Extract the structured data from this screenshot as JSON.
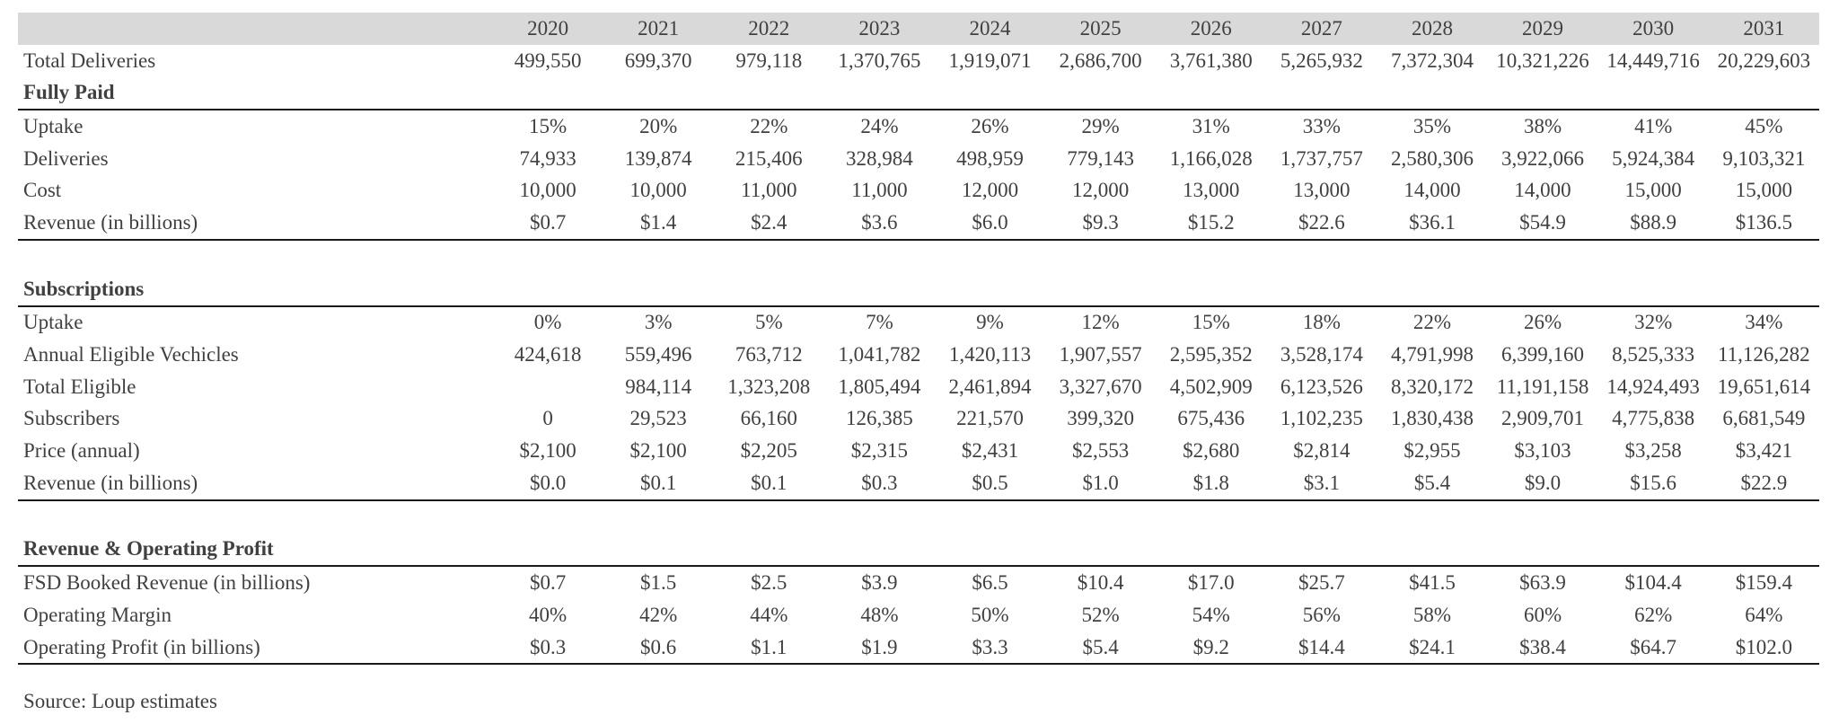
{
  "years": [
    "2020",
    "2021",
    "2022",
    "2023",
    "2024",
    "2025",
    "2026",
    "2027",
    "2028",
    "2029",
    "2030",
    "2031"
  ],
  "total_deliveries": {
    "label": "Total Deliveries",
    "values": [
      "499,550",
      "699,370",
      "979,118",
      "1,370,765",
      "1,919,071",
      "2,686,700",
      "3,761,380",
      "5,265,932",
      "7,372,304",
      "10,321,226",
      "14,449,716",
      "20,229,603"
    ]
  },
  "fully_paid": {
    "title": "Fully Paid",
    "rows": [
      {
        "label": "Uptake",
        "values": [
          "15%",
          "20%",
          "22%",
          "24%",
          "26%",
          "29%",
          "31%",
          "33%",
          "35%",
          "38%",
          "41%",
          "45%"
        ]
      },
      {
        "label": "Deliveries",
        "values": [
          "74,933",
          "139,874",
          "215,406",
          "328,984",
          "498,959",
          "779,143",
          "1,166,028",
          "1,737,757",
          "2,580,306",
          "3,922,066",
          "5,924,384",
          "9,103,321"
        ]
      },
      {
        "label": "Cost",
        "values": [
          "10,000",
          "10,000",
          "11,000",
          "11,000",
          "12,000",
          "12,000",
          "13,000",
          "13,000",
          "14,000",
          "14,000",
          "15,000",
          "15,000"
        ]
      },
      {
        "label": "Revenue (in billions)",
        "values": [
          "$0.7",
          "$1.4",
          "$2.4",
          "$3.6",
          "$6.0",
          "$9.3",
          "$15.2",
          "$22.6",
          "$36.1",
          "$54.9",
          "$88.9",
          "$136.5"
        ]
      }
    ]
  },
  "subscriptions": {
    "title": "Subscriptions",
    "rows": [
      {
        "label": "Uptake",
        "values": [
          "0%",
          "3%",
          "5%",
          "7%",
          "9%",
          "12%",
          "15%",
          "18%",
          "22%",
          "26%",
          "32%",
          "34%"
        ]
      },
      {
        "label": "Annual Eligible Vechicles",
        "values": [
          "424,618",
          "559,496",
          "763,712",
          "1,041,782",
          "1,420,113",
          "1,907,557",
          "2,595,352",
          "3,528,174",
          "4,791,998",
          "6,399,160",
          "8,525,333",
          "11,126,282"
        ]
      },
      {
        "label": "Total Eligible",
        "values": [
          "",
          "984,114",
          "1,323,208",
          "1,805,494",
          "2,461,894",
          "3,327,670",
          "4,502,909",
          "6,123,526",
          "8,320,172",
          "11,191,158",
          "14,924,493",
          "19,651,614"
        ]
      },
      {
        "label": "Subscribers",
        "values": [
          "0",
          "29,523",
          "66,160",
          "126,385",
          "221,570",
          "399,320",
          "675,436",
          "1,102,235",
          "1,830,438",
          "2,909,701",
          "4,775,838",
          "6,681,549"
        ]
      },
      {
        "label": "Price (annual)",
        "values": [
          "$2,100",
          "$2,100",
          "$2,205",
          "$2,315",
          "$2,431",
          "$2,553",
          "$2,680",
          "$2,814",
          "$2,955",
          "$3,103",
          "$3,258",
          "$3,421"
        ]
      },
      {
        "label": "Revenue (in billions)",
        "values": [
          "$0.0",
          "$0.1",
          "$0.1",
          "$0.3",
          "$0.5",
          "$1.0",
          "$1.8",
          "$3.1",
          "$5.4",
          "$9.0",
          "$15.6",
          "$22.9"
        ]
      }
    ]
  },
  "revenue_profit": {
    "title": "Revenue & Operating Profit",
    "rows": [
      {
        "label": "FSD Booked Revenue (in billions)",
        "values": [
          "$0.7",
          "$1.5",
          "$2.5",
          "$3.9",
          "$6.5",
          "$10.4",
          "$17.0",
          "$25.7",
          "$41.5",
          "$63.9",
          "$104.4",
          "$159.4"
        ]
      },
      {
        "label": "Operating Margin",
        "values": [
          "40%",
          "42%",
          "44%",
          "48%",
          "50%",
          "52%",
          "54%",
          "56%",
          "58%",
          "60%",
          "62%",
          "64%"
        ]
      },
      {
        "label": "Operating Profit (in billions)",
        "values": [
          "$0.3",
          "$0.6",
          "$1.1",
          "$1.9",
          "$3.3",
          "$5.4",
          "$9.2",
          "$14.4",
          "$24.1",
          "$38.4",
          "$64.7",
          "$102.0"
        ]
      }
    ]
  },
  "source": "Source: Loup estimates"
}
